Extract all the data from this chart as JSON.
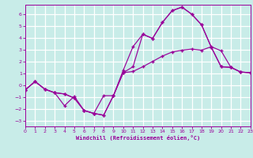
{
  "xlabel": "Windchill (Refroidissement éolien,°C)",
  "bg_color": "#c8ece8",
  "grid_color": "#b0d8d4",
  "line_color": "#990099",
  "xlim": [
    0,
    23
  ],
  "ylim": [
    -3.5,
    6.8
  ],
  "xticks": [
    0,
    1,
    2,
    3,
    4,
    5,
    6,
    7,
    8,
    9,
    10,
    11,
    12,
    13,
    14,
    15,
    16,
    17,
    18,
    19,
    20,
    21,
    22,
    23
  ],
  "yticks": [
    -3,
    -2,
    -1,
    0,
    1,
    2,
    3,
    4,
    5,
    6
  ],
  "line1_x": [
    0,
    1,
    2,
    3,
    4,
    5,
    6,
    7,
    8,
    9,
    10,
    11,
    12,
    13,
    14,
    15,
    16,
    17,
    18,
    19,
    20,
    21,
    22,
    23
  ],
  "line1_y": [
    -0.4,
    0.3,
    -0.35,
    -0.65,
    -0.75,
    -1.1,
    -2.15,
    -2.4,
    -2.55,
    -0.9,
    1.05,
    1.15,
    1.55,
    2.0,
    2.45,
    2.8,
    2.95,
    3.05,
    2.95,
    3.25,
    2.9,
    1.5,
    1.1,
    1.05
  ],
  "line2_x": [
    0,
    1,
    2,
    3,
    4,
    5,
    6,
    7,
    8,
    9,
    10,
    11,
    12,
    13,
    14,
    15,
    16,
    17,
    18,
    19,
    20,
    21,
    22,
    23
  ],
  "line2_y": [
    -0.4,
    0.3,
    -0.35,
    -0.65,
    -1.75,
    -0.95,
    -2.15,
    -2.4,
    -0.9,
    -0.9,
    1.25,
    3.25,
    4.3,
    3.95,
    5.3,
    6.3,
    6.6,
    6.0,
    5.1,
    3.2,
    1.55,
    1.5,
    1.1,
    1.05
  ],
  "line3_x": [
    0,
    1,
    2,
    3,
    4,
    5,
    6,
    7,
    8,
    9,
    10,
    11,
    12,
    13,
    14,
    15,
    16,
    17,
    18,
    19,
    20,
    21,
    22,
    23
  ],
  "line3_y": [
    -0.4,
    0.3,
    -0.35,
    -0.65,
    -0.75,
    -1.1,
    -2.15,
    -2.4,
    -2.55,
    -0.9,
    1.05,
    1.55,
    4.3,
    3.95,
    5.3,
    6.3,
    6.6,
    6.0,
    5.1,
    3.2,
    1.55,
    1.5,
    1.1,
    1.05
  ]
}
